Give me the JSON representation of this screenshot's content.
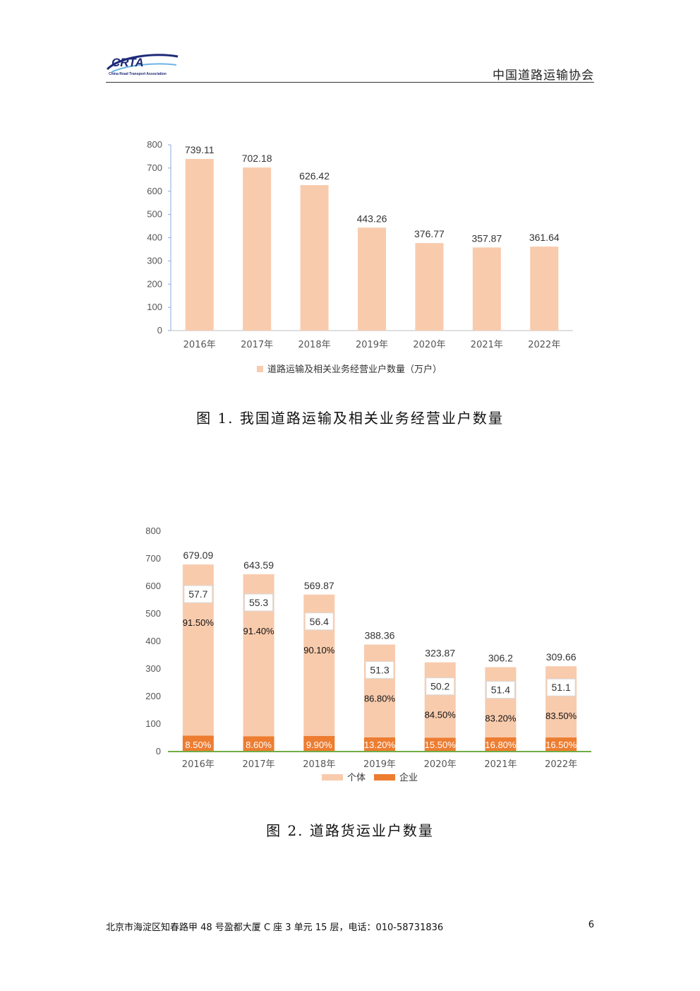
{
  "header": {
    "logo_text": "CRTA",
    "logo_tagline": "China Road Transport Association",
    "org_name": "中国道路运输协会"
  },
  "figure1": {
    "caption": "图 1. 我国道路运输及相关业务经营业户数量"
  },
  "figure2": {
    "caption": "图 2. 道路货运业户数量"
  },
  "chart_data": [
    {
      "type": "bar",
      "categories": [
        "2016年",
        "2017年",
        "2018年",
        "2019年",
        "2020年",
        "2021年",
        "2022年"
      ],
      "series": [
        {
          "name": "道路运输及相关业务经营业户数量（万户）",
          "values": [
            739.11,
            702.18,
            626.42,
            443.26,
            376.77,
            357.87,
            361.64
          ],
          "color": "#f8cbad"
        }
      ],
      "data_labels": [
        "739.11",
        "702.18",
        "626.42",
        "443.26",
        "376.77",
        "357.87",
        "361.64"
      ],
      "ylim": [
        0,
        800
      ],
      "yticks": [
        "0",
        "100",
        "200",
        "300",
        "400",
        "500",
        "600",
        "700",
        "800"
      ],
      "legend": "bottom",
      "grid": false
    },
    {
      "type": "bar",
      "stacked": true,
      "categories": [
        "2016年",
        "2017年",
        "2018年",
        "2019年",
        "2020年",
        "2021年",
        "2022年"
      ],
      "totals": [
        679.09,
        643.59,
        569.87,
        388.36,
        323.87,
        306.2,
        309.66
      ],
      "total_labels": [
        "679.09",
        "643.59",
        "569.87",
        "388.36",
        "323.87",
        "306.2",
        "309.66"
      ],
      "series": [
        {
          "name": "企业",
          "values": [
            57.7,
            55.3,
            56.4,
            51.3,
            50.2,
            51.4,
            51.1
          ],
          "value_labels": [
            "57.7",
            "55.3",
            "56.4",
            "51.3",
            "50.2",
            "51.4",
            "51.1"
          ],
          "share_labels": [
            "8.50%",
            "8.60%",
            "9.90%",
            "13.20%",
            "15.50%",
            "16.80%",
            "16.50%"
          ],
          "color": "#ed7d31"
        },
        {
          "name": "个体",
          "values": [
            621.39,
            588.29,
            513.47,
            337.06,
            273.67,
            254.8,
            258.56
          ],
          "share_labels": [
            "91.50%",
            "91.40%",
            "90.10%",
            "86.80%",
            "84.50%",
            "83.20%",
            "83.50%"
          ],
          "color": "#f8cbad"
        }
      ],
      "ylim": [
        0,
        800
      ],
      "yticks": [
        "0",
        "100",
        "200",
        "300",
        "400",
        "500",
        "600",
        "700",
        "800"
      ],
      "legend": "bottom",
      "grid": false
    }
  ],
  "footer": {
    "address": "北京市海淀区知春路甲 48 号盈都大厦 C 座 3 单元 15 层，电话：010-58731836",
    "page_number": "6"
  }
}
